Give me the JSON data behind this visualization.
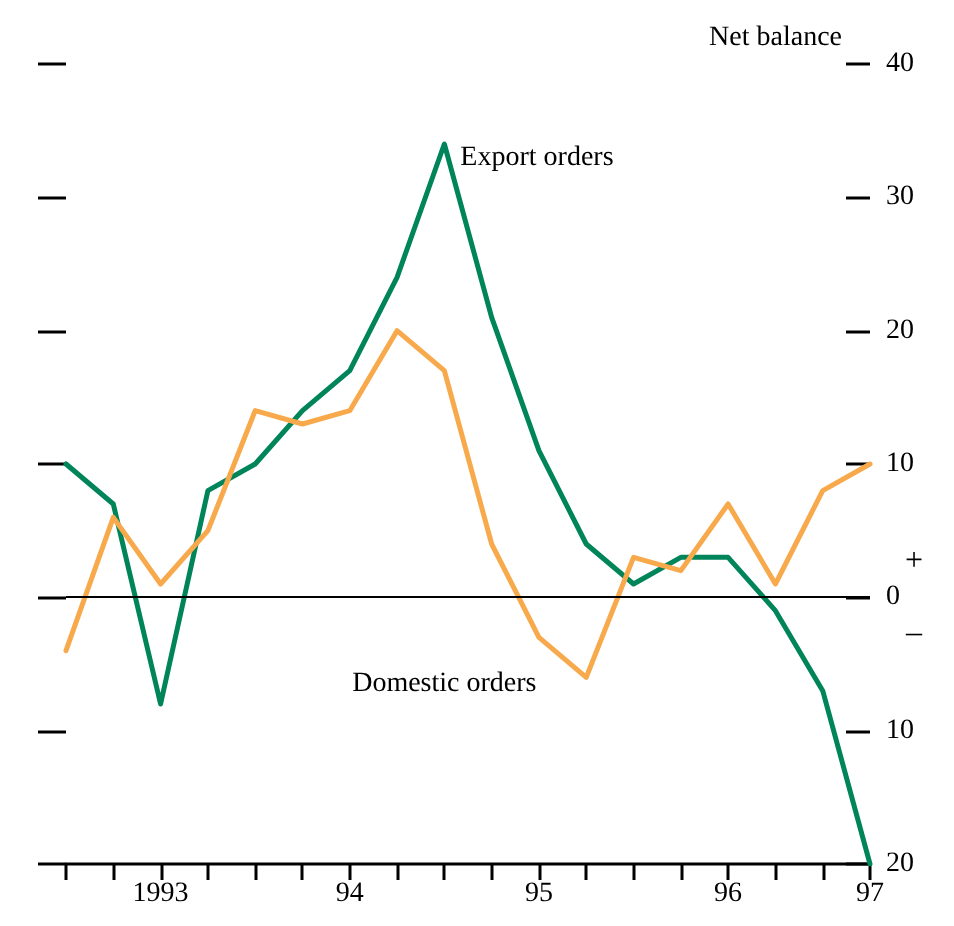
{
  "chart_data": {
    "type": "line",
    "ylabel": "Net balance",
    "categories": [
      null,
      null,
      "1993",
      null,
      null,
      null,
      "94",
      null,
      null,
      null,
      "95",
      null,
      null,
      null,
      "96",
      null,
      null,
      "97"
    ],
    "series": [
      {
        "name": "Export orders",
        "color": "#00845a",
        "values": [
          10,
          7,
          -8,
          8,
          10,
          14,
          17,
          24,
          34,
          21,
          11,
          4,
          1,
          3,
          3,
          -1,
          -7,
          -20
        ]
      },
      {
        "name": "Domestic orders",
        "color": "#f7a94b",
        "values": [
          -4,
          6,
          1,
          5,
          14,
          13,
          14,
          20,
          17,
          4,
          -3,
          -6,
          3,
          2,
          7,
          1,
          8,
          10
        ]
      }
    ],
    "ylim": [
      -20,
      40
    ],
    "yticks": [
      {
        "value": -20,
        "label": "20"
      },
      {
        "value": -10,
        "label": "10"
      },
      0,
      10,
      20,
      30,
      40
    ],
    "ref_lines": [
      {
        "axis": "y",
        "value": 0,
        "color": "#000000"
      }
    ],
    "annotations": [
      "+",
      "–"
    ],
    "grid": false,
    "legend": false,
    "marker": "none",
    "line_style": "solid"
  }
}
